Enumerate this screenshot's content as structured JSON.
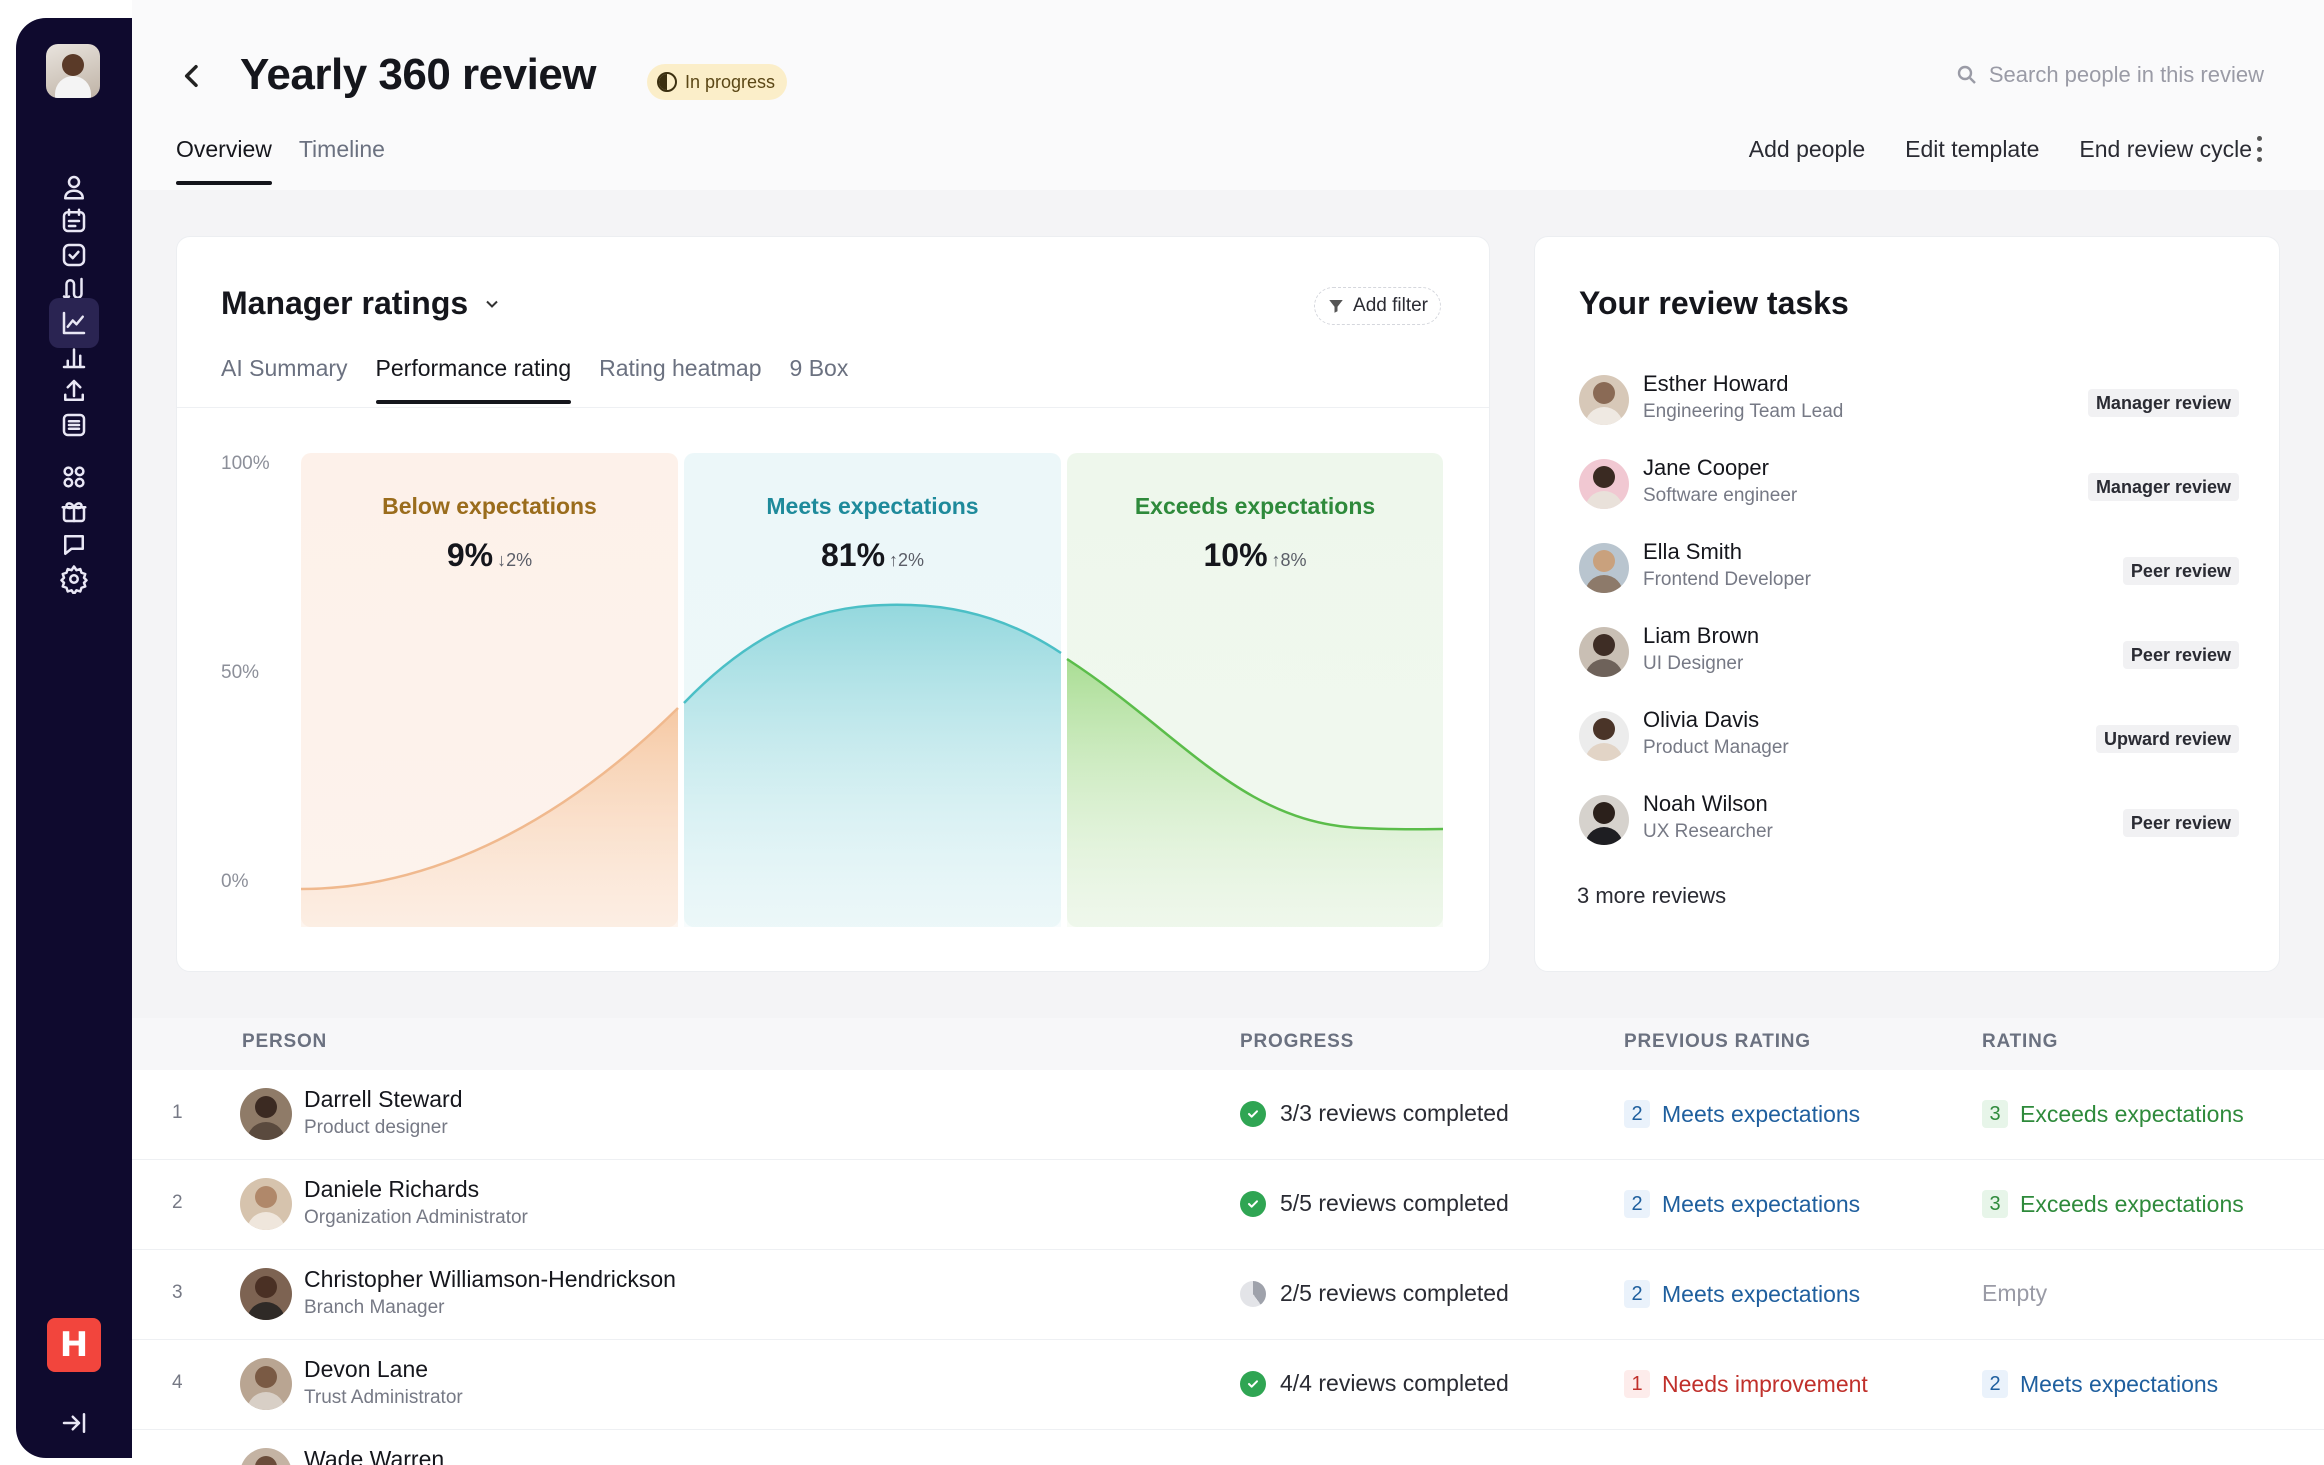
{
  "header": {
    "title": "Yearly 360 review",
    "status": "In progress",
    "search_placeholder": "Search people in this review",
    "tabs": [
      "Overview",
      "Timeline"
    ],
    "actions": [
      "Add people",
      "Edit template",
      "End review cycle"
    ]
  },
  "ratings_card": {
    "title": "Manager ratings",
    "add_filter": "Add filter",
    "tabs": [
      "AI Summary",
      "Performance rating",
      "Rating heatmap",
      "9 Box"
    ],
    "y_labels": [
      "100%",
      "50%",
      "0%"
    ],
    "bands": [
      {
        "label": "Below expectations",
        "value": "9%",
        "delta": "↓2%",
        "color": "#b07a1e"
      },
      {
        "label": "Meets expectations",
        "value": "81%",
        "delta": "↑2%",
        "color": "#1e8a9b"
      },
      {
        "label": "Exceeds expectations",
        "value": "10%",
        "delta": "↑8%",
        "color": "#2e8a3b"
      }
    ]
  },
  "tasks_card": {
    "title": "Your review tasks",
    "items": [
      {
        "name": "Esther Howard",
        "role": "Engineering Team Lead",
        "type": "Manager review"
      },
      {
        "name": "Jane Cooper",
        "role": "Software engineer",
        "type": "Manager review"
      },
      {
        "name": "Ella Smith",
        "role": "Frontend Developer",
        "type": "Peer review"
      },
      {
        "name": "Liam Brown",
        "role": "UI Designer",
        "type": "Peer review"
      },
      {
        "name": "Olivia Davis",
        "role": "Product Manager",
        "type": "Upward review"
      },
      {
        "name": "Noah Wilson",
        "role": "UX Researcher",
        "type": "Peer review"
      }
    ],
    "more": "3 more reviews"
  },
  "table": {
    "headers": {
      "person": "PERSON",
      "progress": "PROGRESS",
      "previous": "PREVIOUS RATING",
      "rating": "RATING"
    },
    "rows": [
      {
        "num": "1",
        "name": "Darrell Steward",
        "role": "Product designer",
        "progress": "3/3 reviews completed",
        "prev_num": "2",
        "prev": "Meets expectations",
        "rating_num": "3",
        "rating": "Exceeds expectations"
      },
      {
        "num": "2",
        "name": "Daniele Richards",
        "role": "Organization Administrator",
        "progress": "5/5 reviews completed",
        "prev_num": "2",
        "prev": "Meets expectations",
        "rating_num": "3",
        "rating": "Exceeds expectations"
      },
      {
        "num": "3",
        "name": "Christopher Williamson-Hendrickson",
        "role": "Branch Manager",
        "progress": "2/5 reviews completed",
        "prev_num": "2",
        "prev": "Meets expectations",
        "rating_num": "",
        "rating": "Empty"
      },
      {
        "num": "4",
        "name": "Devon Lane",
        "role": "Trust Administrator",
        "progress": "4/4 reviews completed",
        "prev_num": "1",
        "prev": "Needs improvement",
        "rating_num": "2",
        "rating": "Meets expectations"
      },
      {
        "num": "",
        "name": "Wade Warren",
        "role": "",
        "progress": "",
        "prev_num": "",
        "prev": "",
        "rating_num": "",
        "rating": ""
      }
    ]
  },
  "sidebar": {
    "icons": [
      "user-icon",
      "calendar-icon",
      "checkbox-icon",
      "flow-icon",
      "analytics-icon",
      "bar-chart-icon",
      "upload-icon",
      "list-icon",
      "apps-icon",
      "gift-icon",
      "chat-icon",
      "settings-icon"
    ],
    "active": "analytics-icon",
    "brand": "H"
  }
}
